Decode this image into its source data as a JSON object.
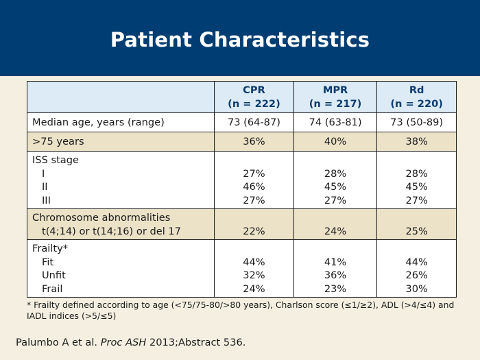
{
  "title": "Patient Characteristics",
  "table": {
    "headers": [
      {
        "label": "",
        "n": ""
      },
      {
        "label": "CPR",
        "n": "(n = 222)"
      },
      {
        "label": "MPR",
        "n": "(n = 217)"
      },
      {
        "label": "Rd",
        "n": "(n = 220)"
      }
    ],
    "rows": {
      "median_age": {
        "label": "Median age, years (range)",
        "values": [
          "73 (64-87)",
          "74 (63-81)",
          "73 (50-89)"
        ]
      },
      "over75": {
        "label": ">75 years",
        "values": [
          "36%",
          "40%",
          "38%"
        ]
      },
      "iss": {
        "label": "ISS stage",
        "sub": [
          "I",
          "II",
          "III"
        ],
        "values": [
          [
            "27%",
            "46%",
            "27%"
          ],
          [
            "28%",
            "45%",
            "27%"
          ],
          [
            "28%",
            "45%",
            "27%"
          ]
        ]
      },
      "chromosome": {
        "label": "Chromosome abnormalities",
        "sub": [
          "t(4;14) or t(14;16) or del 17"
        ],
        "values": [
          "22%",
          "24%",
          "25%"
        ]
      },
      "frailty": {
        "label": "Frailty*",
        "sub": [
          "Fit",
          "Unfit",
          "Frail"
        ],
        "values": [
          [
            "44%",
            "32%",
            "24%"
          ],
          [
            "41%",
            "36%",
            "23%"
          ],
          [
            "44%",
            "26%",
            "30%"
          ]
        ]
      }
    }
  },
  "footnote": "* Frailty defined according to age (<75/75-80/>80 years), Charlson score (≤1/≥2), ADL (>4/≤4) and IADL indices (>5/≤5)",
  "citation": {
    "authors": "Palumbo A et al.",
    "journal": "Proc ASH",
    "rest": "2013;Abstract 536."
  },
  "colors": {
    "title_band": "#003d73",
    "header_fill": "#dcebf5",
    "header_text": "#0d3c6e",
    "row_beige": "#ebe2c8",
    "background": "#f4efe1"
  }
}
